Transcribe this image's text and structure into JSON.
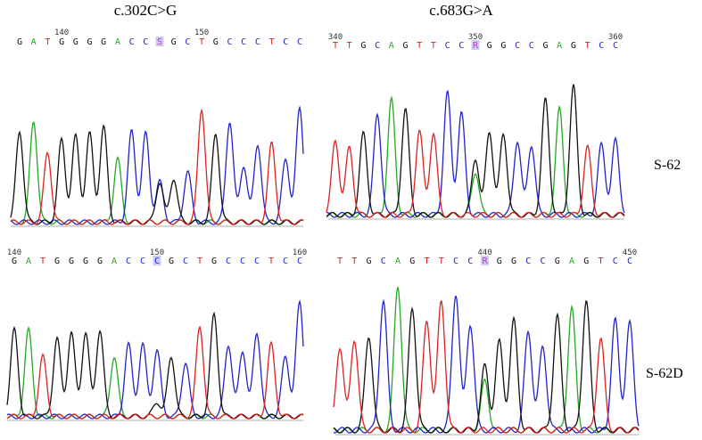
{
  "colors": {
    "A": "#22aa22",
    "C": "#2222cc",
    "G": "#111111",
    "T": "#dd2222",
    "ambiguous": "#cc33cc",
    "ambiguous_box": "#aaaaee"
  },
  "titles": {
    "left": "c.302C>G",
    "right": "c.683G>A"
  },
  "samples": {
    "top": "S-62",
    "bottom": "S-62D"
  },
  "panels": [
    {
      "id": "top-left",
      "sequence": "GATGGGGACCSGCTGCCCTCC",
      "highlight_index": 10,
      "positions": [
        {
          "label": "140",
          "index": 3
        },
        {
          "label": "150",
          "index": 13
        }
      ]
    },
    {
      "id": "top-right",
      "sequence": "TTGCAGTTCCRGGCCGAGTCC",
      "highlight_index": 10,
      "positions": [
        {
          "label": "340",
          "index": 0
        },
        {
          "label": "350",
          "index": 10
        },
        {
          "label": "360",
          "index": 20
        }
      ]
    },
    {
      "id": "bottom-left",
      "sequence": "GATGGGGACCCGCTGCCCTCC",
      "highlight_index": 10,
      "positions": [
        {
          "label": "140",
          "index": 0
        },
        {
          "label": "150",
          "index": 10
        },
        {
          "label": "160",
          "index": 20
        }
      ]
    },
    {
      "id": "bottom-right",
      "sequence": "TTGCAGTTCCRGGCCGAGTCC",
      "highlight_index": 10,
      "positions": [
        {
          "label": "440",
          "index": 10
        },
        {
          "label": "450",
          "index": 20
        }
      ]
    }
  ]
}
